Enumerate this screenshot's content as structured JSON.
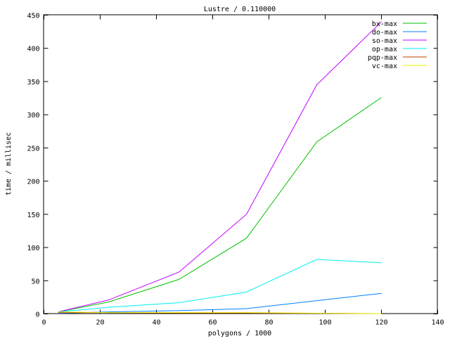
{
  "chart_data": {
    "type": "line",
    "title": "Lustre / 0.110000",
    "xlabel": "polygons / 1000",
    "ylabel": "time / millisec",
    "xlim": [
      0,
      140
    ],
    "ylim": [
      0,
      450
    ],
    "xticks": [
      0,
      20,
      40,
      60,
      80,
      100,
      120,
      140
    ],
    "yticks": [
      0,
      50,
      100,
      150,
      200,
      250,
      300,
      350,
      400,
      450
    ],
    "grid": false,
    "legend": "top-right",
    "x": [
      5,
      23,
      48,
      72,
      97,
      120
    ],
    "series": [
      {
        "name": "bx-max",
        "color": "#00c000",
        "values": [
          3,
          18,
          52,
          114,
          259,
          326
        ]
      },
      {
        "name": "do-max",
        "color": "#0080ff",
        "values": [
          1,
          3,
          5,
          8,
          20,
          31
        ]
      },
      {
        "name": "so-max",
        "color": "#c000ff",
        "values": [
          3,
          21,
          63,
          150,
          345,
          440
        ]
      },
      {
        "name": "op-max",
        "color": "#00eeee",
        "values": [
          3,
          10,
          17,
          33,
          82,
          77
        ]
      },
      {
        "name": "pqp-max",
        "color": "#c04000",
        "values": [
          2,
          2,
          1.5,
          1.5,
          1,
          0.5
        ]
      },
      {
        "name": "vc-max",
        "color": "#eeee00",
        "values": [
          3,
          2,
          2,
          2,
          1,
          0.5
        ]
      }
    ]
  }
}
